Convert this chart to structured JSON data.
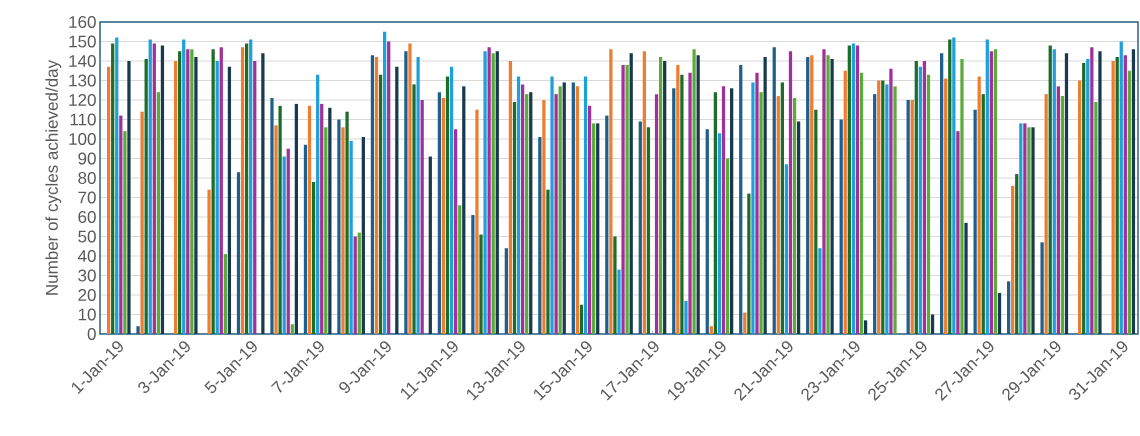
{
  "chart_data": {
    "type": "bar",
    "ylabel": "Number of cycles achieved/day",
    "categories": [
      "1-Jan-19",
      null,
      "3-Jan-19",
      null,
      "5-Jan-19",
      null,
      "7-Jan-19",
      null,
      "9-Jan-19",
      null,
      "11-Jan-19",
      null,
      "13-Jan-19",
      null,
      "15-Jan-19",
      null,
      "17-Jan-19",
      null,
      "19-Jan-19",
      null,
      "21-Jan-19",
      null,
      "23-Jan-19",
      null,
      "25-Jan-19",
      null,
      "27-Jan-19",
      null,
      "29-Jan-19",
      null,
      "31-Jan-19"
    ],
    "series": [
      {
        "color": "#1f5f8b",
        "values": [
          null,
          4,
          null,
          null,
          83,
          121,
          97,
          110,
          143,
          145,
          124,
          61,
          44,
          101,
          129,
          112,
          109,
          126,
          105,
          138,
          147,
          142,
          110,
          123,
          120,
          144,
          115,
          27,
          47,
          null,
          null
        ]
      },
      {
        "color": "#ed7d31",
        "values": [
          137,
          114,
          140,
          74,
          147,
          107,
          117,
          106,
          142,
          149,
          121,
          115,
          140,
          120,
          127,
          146,
          145,
          138,
          4,
          11,
          122,
          143,
          135,
          130,
          120,
          131,
          132,
          76,
          123,
          130,
          140
        ]
      },
      {
        "color": "#1e6b2a",
        "values": [
          149,
          141,
          145,
          146,
          149,
          117,
          78,
          114,
          133,
          128,
          132,
          51,
          119,
          74,
          15,
          50,
          106,
          133,
          124,
          72,
          129,
          115,
          148,
          130,
          140,
          151,
          123,
          82,
          148,
          139,
          142
        ]
      },
      {
        "color": "#1ea0dc",
        "values": [
          152,
          151,
          151,
          140,
          151,
          91,
          133,
          99,
          155,
          142,
          137,
          145,
          132,
          132,
          132,
          33,
          null,
          17,
          103,
          129,
          87,
          44,
          149,
          128,
          137,
          152,
          151,
          108,
          146,
          141,
          150
        ]
      },
      {
        "color": "#a0309a",
        "values": [
          112,
          149,
          146,
          147,
          140,
          95,
          118,
          50,
          150,
          120,
          105,
          147,
          128,
          123,
          117,
          138,
          123,
          134,
          127,
          134,
          145,
          146,
          148,
          136,
          140,
          104,
          145,
          108,
          127,
          147,
          143
        ]
      },
      {
        "color": "#5aab3a",
        "values": [
          104,
          124,
          146,
          41,
          null,
          5,
          106,
          52,
          null,
          null,
          66,
          144,
          123,
          127,
          108,
          138,
          142,
          146,
          90,
          124,
          121,
          143,
          134,
          127,
          133,
          141,
          146,
          106,
          122,
          119,
          135
        ]
      },
      {
        "color": "#173a4f",
        "values": [
          140,
          148,
          142,
          137,
          144,
          118,
          116,
          101,
          137,
          91,
          127,
          145,
          124,
          129,
          108,
          144,
          140,
          143,
          126,
          142,
          109,
          141,
          7,
          null,
          10,
          57,
          21,
          106,
          144,
          145,
          146
        ]
      }
    ],
    "ylim": [
      0,
      160
    ],
    "yticks": [
      0,
      10,
      20,
      30,
      40,
      50,
      60,
      70,
      80,
      90,
      100,
      110,
      120,
      130,
      140,
      150,
      160
    ],
    "grid": "y"
  }
}
